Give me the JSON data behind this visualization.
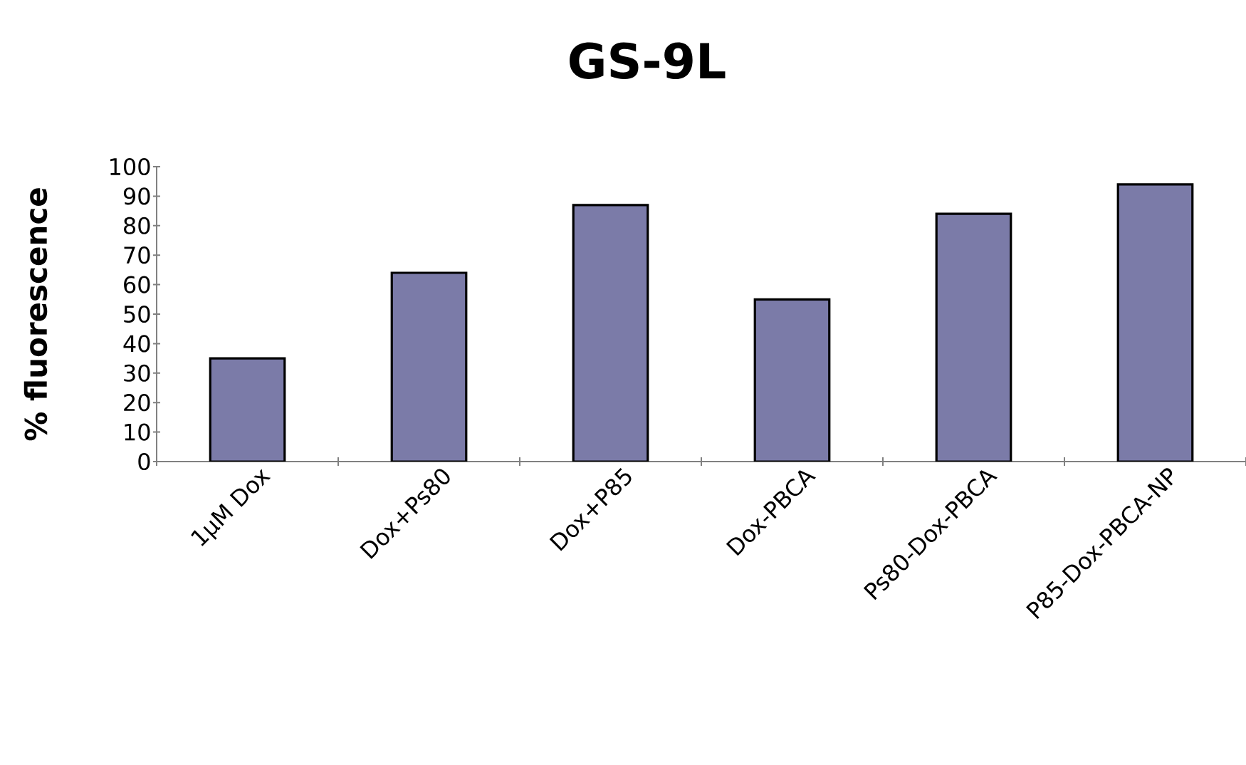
{
  "chart_data": {
    "type": "bar",
    "title": "GS-9L",
    "ylabel": "% fluorescence",
    "categories": [
      "1μM Dox",
      "Dox+Ps80",
      "Dox+P85",
      "Dox-PBCA",
      "Ps80-Dox-PBCA",
      "P85-Dox-PBCA-NP"
    ],
    "values": [
      35,
      64,
      87,
      55,
      84,
      94
    ],
    "color": "#7b7ba8",
    "ylim": [
      0,
      100
    ],
    "yticks": [
      0,
      10,
      20,
      30,
      40,
      50,
      60,
      70,
      80,
      90,
      100
    ],
    "grid": false
  }
}
